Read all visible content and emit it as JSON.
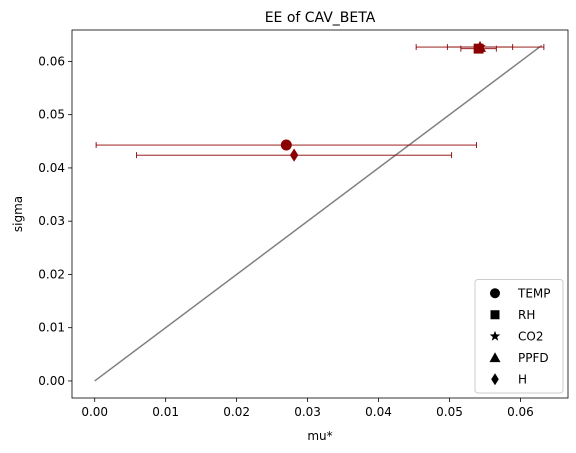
{
  "chart_data": {
    "type": "scatter",
    "title": "EE of CAV_BETA",
    "xlabel": "mu*",
    "ylabel": "sigma",
    "xlim": [
      -0.0032,
      0.0667
    ],
    "ylim": [
      -0.0032,
      0.0659
    ],
    "xticks": [
      "0.00",
      "0.01",
      "0.02",
      "0.03",
      "0.04",
      "0.05",
      "0.06"
    ],
    "yticks": [
      "0.00",
      "0.01",
      "0.02",
      "0.03",
      "0.04",
      "0.05",
      "0.06"
    ],
    "grid": false,
    "legend_position": "lower-right",
    "marker_color": "#8b0000",
    "line_color": "#808080",
    "reference_line": {
      "x": [
        0,
        0.063
      ],
      "y": [
        0,
        0.063
      ]
    },
    "series": [
      {
        "name": "TEMP",
        "marker": "circle",
        "x": 0.027,
        "y": 0.0443,
        "xerr": 0.0268
      },
      {
        "name": "RH",
        "marker": "square",
        "x": 0.0541,
        "y": 0.0624,
        "xerr": 0.0025
      },
      {
        "name": "CO2",
        "marker": "star",
        "x": 0.0543,
        "y": 0.0627,
        "xerr": 0.0046
      },
      {
        "name": "PPFD",
        "marker": "triangle",
        "x": 0.0543,
        "y": 0.0627,
        "xerr": 0.009
      },
      {
        "name": "H",
        "marker": "diamond",
        "x": 0.0281,
        "y": 0.0424,
        "xerr": 0.0222
      }
    ]
  }
}
